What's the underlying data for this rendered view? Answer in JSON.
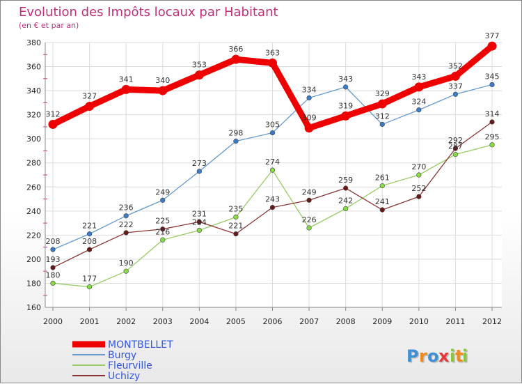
{
  "chart_data": {
    "type": "line",
    "title": "Evolution des Impôts locaux par Habitant",
    "subtitle": "(en € et par an)",
    "xlabel": "",
    "ylabel": "",
    "categories": [
      "2000",
      "2001",
      "2002",
      "2003",
      "2004",
      "2005",
      "2006",
      "2007",
      "2008",
      "2009",
      "2010",
      "2011",
      "2012"
    ],
    "ylim": [
      160,
      380
    ],
    "yticks": [
      160,
      180,
      200,
      220,
      240,
      260,
      280,
      300,
      320,
      340,
      360,
      380
    ],
    "grid": true,
    "legend_position": "bottom-left",
    "series": [
      {
        "name": "Burgy",
        "color": "#6699cc",
        "marker": "#3a7cc8",
        "values": [
          208,
          221,
          236,
          249,
          273,
          298,
          305,
          334,
          343,
          312,
          324,
          337,
          345
        ]
      },
      {
        "name": "Fleurville",
        "color": "#99cc66",
        "marker": "#88dd44",
        "values": [
          180,
          177,
          190,
          216,
          224,
          235,
          274,
          226,
          242,
          261,
          270,
          287,
          295
        ]
      },
      {
        "name": "Uchizy",
        "color": "#883333",
        "marker": "#661a1a",
        "values": [
          193,
          208,
          222,
          225,
          231,
          221,
          243,
          249,
          259,
          241,
          252,
          292,
          314
        ]
      },
      {
        "name": "MONTBELLET",
        "color": "#ee0000",
        "marker": "#ee0000",
        "values": [
          312,
          327,
          341,
          340,
          353,
          366,
          363,
          309,
          319,
          329,
          343,
          352,
          377
        ]
      }
    ],
    "legend_order": [
      "MONTBELLET",
      "Burgy",
      "Fleurville",
      "Uchizy"
    ]
  },
  "logo": {
    "text": "Proxiti",
    "letters": [
      "P",
      "r",
      "o",
      "x",
      "i",
      "t",
      "i"
    ],
    "colors": [
      "#3d8fd6",
      "#f08a1c",
      "#3d8fd6",
      "#e23a3a",
      "#8cc63f",
      "#f08a1c",
      "#8cc63f"
    ]
  }
}
